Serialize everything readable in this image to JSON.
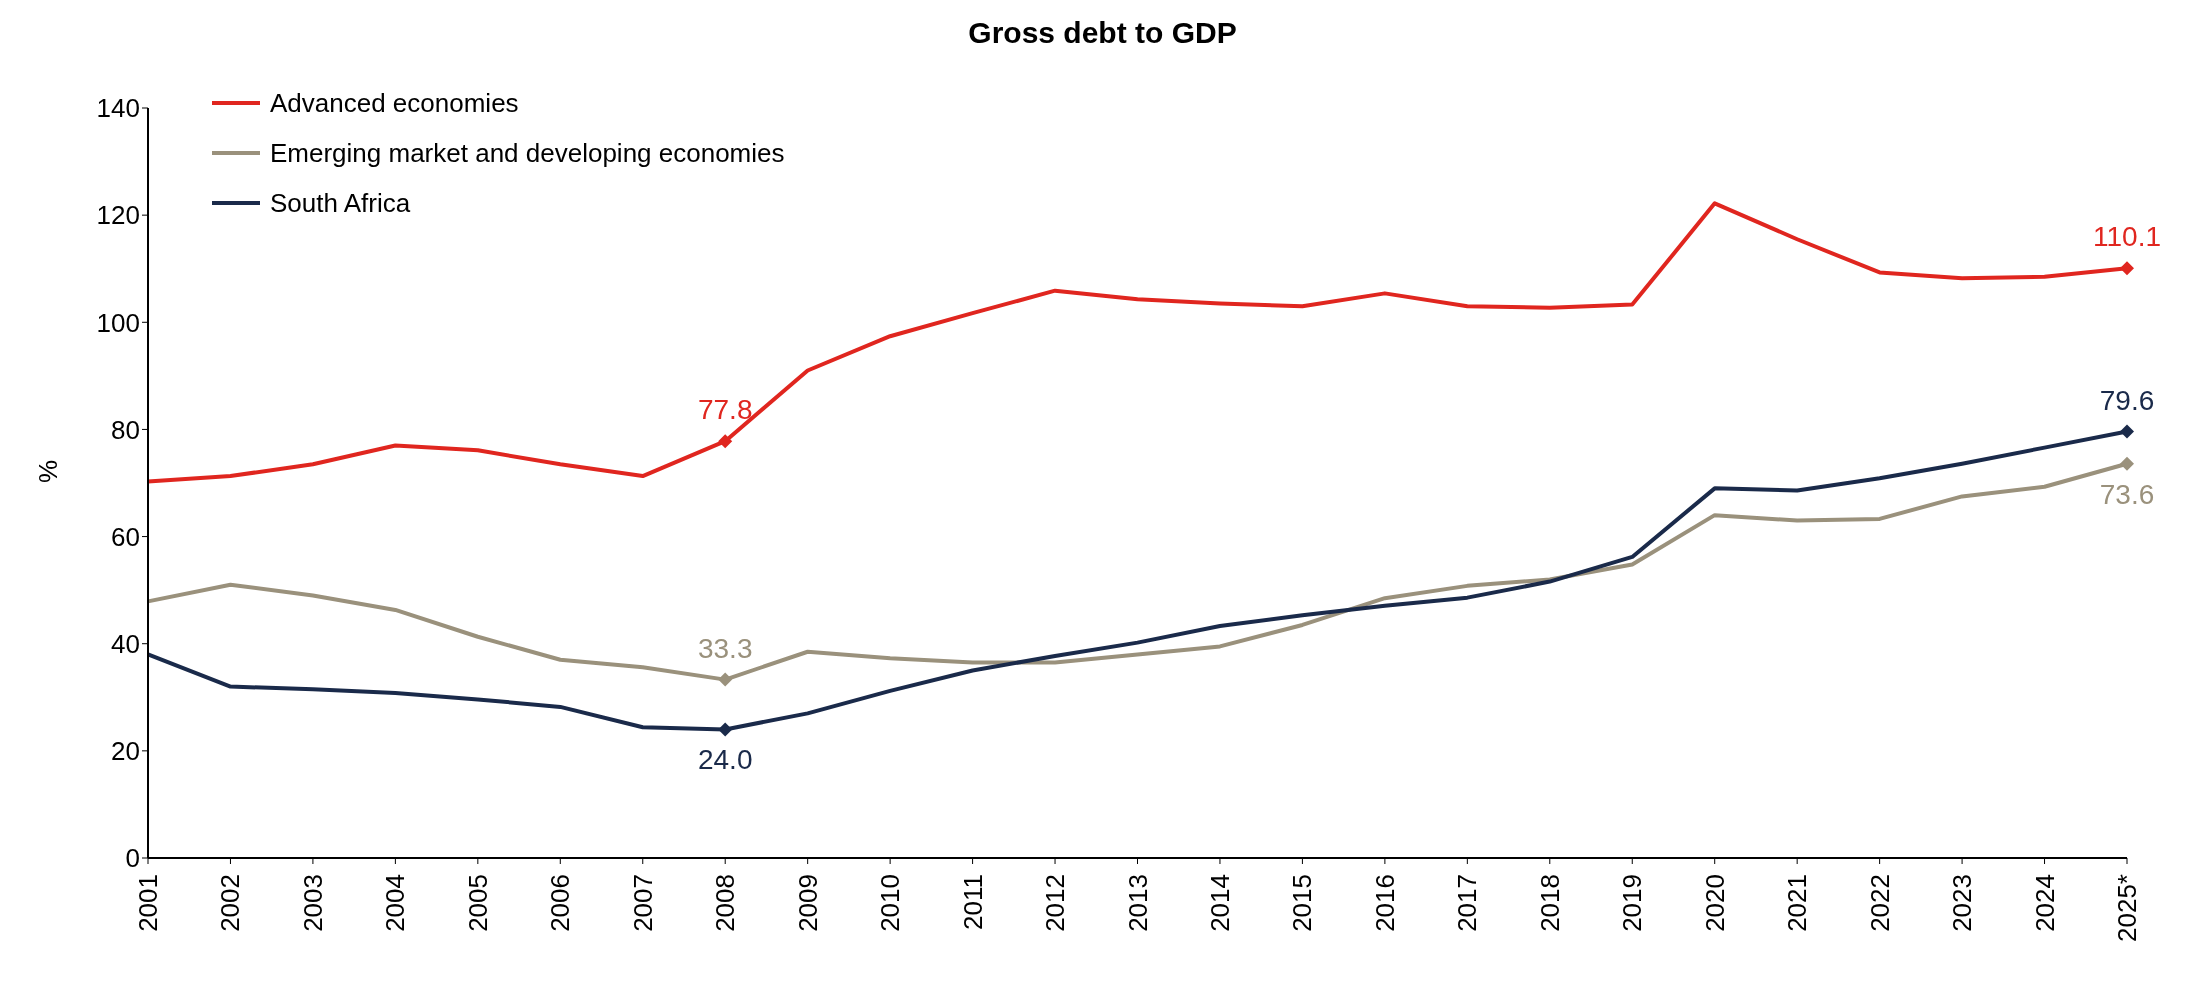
{
  "chart_data": {
    "type": "line",
    "title": "Gross debt to GDP",
    "ylabel": "%",
    "categories": [
      "2001",
      "2002",
      "2003",
      "2004",
      "2005",
      "2006",
      "2007",
      "2008",
      "2009",
      "2010",
      "2011",
      "2012",
      "2013",
      "2014",
      "2015",
      "2016",
      "2017",
      "2018",
      "2019",
      "2020",
      "2021",
      "2022",
      "2023",
      "2024",
      "2025*"
    ],
    "series": [
      {
        "name": "Advanced economies",
        "color": "#e0261f",
        "values": [
          70.3,
          71.3,
          73.5,
          77.0,
          76.1,
          73.5,
          71.3,
          77.8,
          91.0,
          97.4,
          101.7,
          105.9,
          104.3,
          103.5,
          103.0,
          105.4,
          103.0,
          102.7,
          103.3,
          122.2,
          115.5,
          109.3,
          108.2,
          108.5,
          110.1
        ],
        "value_labels": [
          null,
          null,
          null,
          null,
          null,
          null,
          null,
          "77.8",
          null,
          null,
          null,
          null,
          null,
          null,
          null,
          null,
          null,
          null,
          null,
          null,
          null,
          null,
          null,
          null,
          "110.1"
        ]
      },
      {
        "name": "Emerging market and developing economies",
        "color": "#9a917c",
        "values": [
          47.9,
          51.0,
          49.0,
          46.3,
          41.3,
          37.0,
          35.6,
          33.3,
          38.5,
          37.3,
          36.5,
          36.5,
          38.0,
          39.5,
          43.5,
          48.5,
          50.8,
          52.0,
          54.8,
          64.0,
          63.0,
          63.3,
          67.5,
          69.3,
          73.6
        ],
        "value_labels": [
          null,
          null,
          null,
          null,
          null,
          null,
          null,
          "33.3",
          null,
          null,
          null,
          null,
          null,
          null,
          null,
          null,
          null,
          null,
          null,
          null,
          null,
          null,
          null,
          null,
          "73.6"
        ]
      },
      {
        "name": "South Africa",
        "color": "#1a2a4a",
        "values": [
          38.0,
          32.0,
          31.5,
          30.8,
          29.6,
          28.2,
          24.4,
          24.0,
          27.0,
          31.2,
          35.0,
          37.7,
          40.2,
          43.3,
          45.3,
          47.1,
          48.6,
          51.6,
          56.2,
          69.0,
          68.6,
          70.9,
          73.6,
          76.6,
          79.6
        ],
        "value_labels": [
          null,
          null,
          null,
          null,
          null,
          null,
          null,
          "24.0",
          null,
          null,
          null,
          null,
          null,
          null,
          null,
          null,
          null,
          null,
          null,
          null,
          null,
          null,
          null,
          null,
          "79.6"
        ]
      }
    ],
    "ylim": [
      0,
      140
    ],
    "yticks": [
      0,
      20,
      40,
      60,
      80,
      100,
      120,
      140
    ],
    "grid": false,
    "legend": "top left",
    "line_style": "solid"
  }
}
